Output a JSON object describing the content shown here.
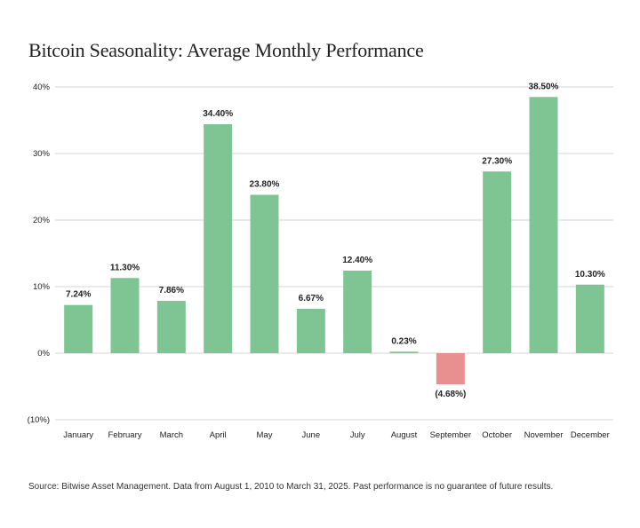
{
  "chart_data": {
    "type": "bar",
    "title": "Bitcoin Seasonality: Average Monthly Performance",
    "xlabel": "",
    "ylabel": "",
    "categories": [
      "January",
      "February",
      "March",
      "April",
      "May",
      "June",
      "July",
      "August",
      "September",
      "October",
      "November",
      "December"
    ],
    "values": [
      7.24,
      11.3,
      7.86,
      34.4,
      23.8,
      6.67,
      12.4,
      0.23,
      -4.68,
      27.3,
      38.5,
      10.3
    ],
    "data_labels": [
      "7.24%",
      "11.30%",
      "7.86%",
      "34.40%",
      "23.80%",
      "6.67%",
      "12.40%",
      "0.23%",
      "(4.68%)",
      "27.30%",
      "38.50%",
      "10.30%"
    ],
    "ylim": [
      -10,
      40
    ],
    "yticks": [
      40,
      30,
      20,
      10,
      0,
      -10
    ],
    "ytick_labels": [
      "40%",
      "30%",
      "20%",
      "10%",
      "0%",
      "(10%)"
    ],
    "grid": true,
    "legend": "none",
    "colors": {
      "positive": "#7fc593",
      "negative": "#e89090",
      "grid": "#d4d4d4",
      "text": "#222222"
    }
  },
  "source_note": "Source: Bitwise Asset Management. Data from August 1, 2010 to March 31, 2025. Past performance is no guarantee of future results."
}
